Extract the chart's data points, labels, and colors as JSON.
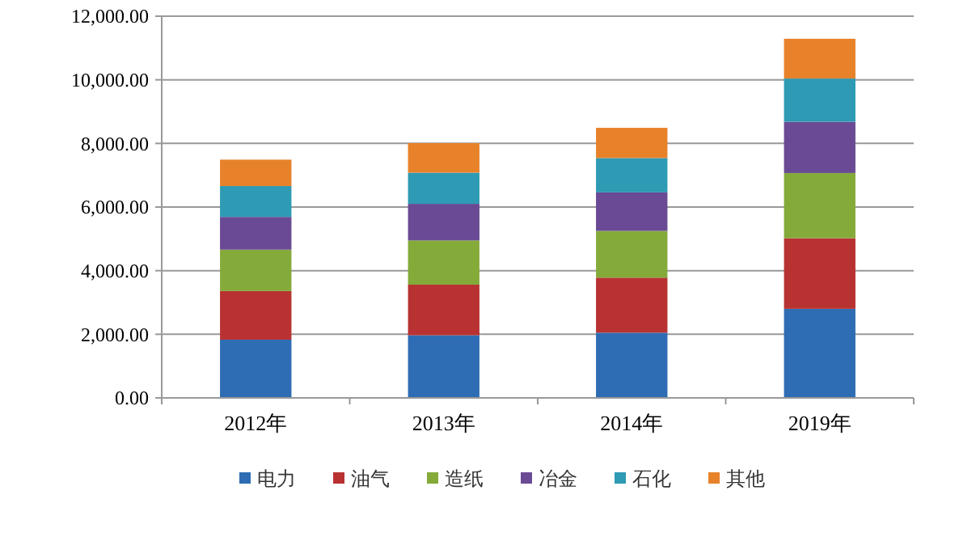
{
  "chart_data": {
    "type": "bar",
    "stacked": true,
    "categories": [
      "2012年",
      "2013年",
      "2014年",
      "2019年"
    ],
    "series": [
      {
        "name": "电力",
        "color": "#2e6db4",
        "values": [
          1830,
          1970,
          2050,
          2800
        ]
      },
      {
        "name": "油气",
        "color": "#b83232",
        "values": [
          1530,
          1590,
          1730,
          2220
        ]
      },
      {
        "name": "造纸",
        "color": "#84aa3a",
        "values": [
          1300,
          1390,
          1470,
          2050
        ]
      },
      {
        "name": "冶金",
        "color": "#6a4a94",
        "values": [
          1030,
          1150,
          1210,
          1610
        ]
      },
      {
        "name": "石化",
        "color": "#2e9ab4",
        "values": [
          970,
          980,
          1080,
          1360
        ]
      },
      {
        "name": "其他",
        "color": "#e8822a",
        "values": [
          830,
          930,
          950,
          1250
        ]
      }
    ],
    "ylim": [
      0,
      12000
    ],
    "yticks": [
      {
        "value": 0,
        "label": "0.00"
      },
      {
        "value": 2000,
        "label": "2,000.00"
      },
      {
        "value": 4000,
        "label": "4,000.00"
      },
      {
        "value": 6000,
        "label": "6,000.00"
      },
      {
        "value": 8000,
        "label": "8,000.00"
      },
      {
        "value": 10000,
        "label": "10,000.00"
      },
      {
        "value": 12000,
        "label": "12,000.00"
      }
    ],
    "grid": "y",
    "legend": "bottom"
  }
}
